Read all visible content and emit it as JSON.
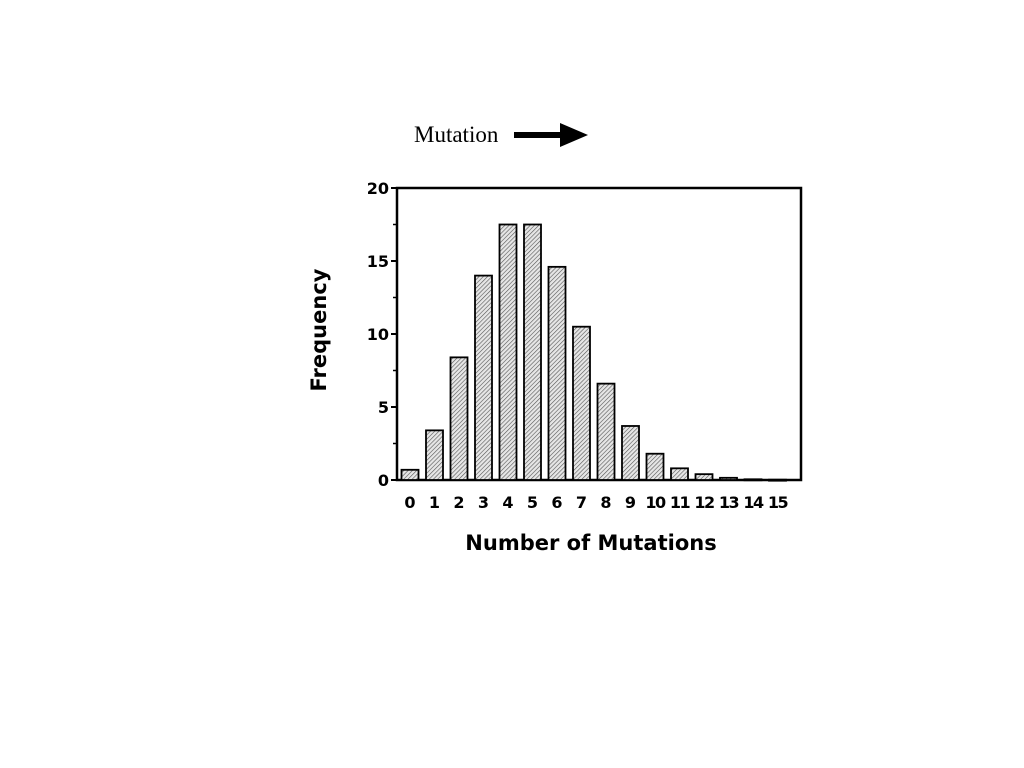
{
  "header": {
    "caption": "Mutation",
    "caption_icon": "right-arrow-icon"
  },
  "chart_data": {
    "type": "bar",
    "title": "",
    "xlabel": "Number of Mutations",
    "ylabel": "Frequency",
    "categories": [
      "0",
      "1",
      "2",
      "3",
      "4",
      "5",
      "6",
      "7",
      "8",
      "9",
      "10",
      "11",
      "12",
      "13",
      "14",
      "15"
    ],
    "values": [
      0.7,
      3.4,
      8.4,
      14.0,
      17.5,
      17.5,
      14.6,
      10.5,
      6.6,
      3.7,
      1.8,
      0.8,
      0.4,
      0.15,
      0.05,
      0.02
    ],
    "ylim": [
      0,
      20
    ],
    "yticks": [
      "0",
      "5",
      "10",
      "15",
      "20"
    ],
    "bar_fill": "hatched",
    "bar_color": "#bdbdbd",
    "grid": false,
    "legend": false
  }
}
